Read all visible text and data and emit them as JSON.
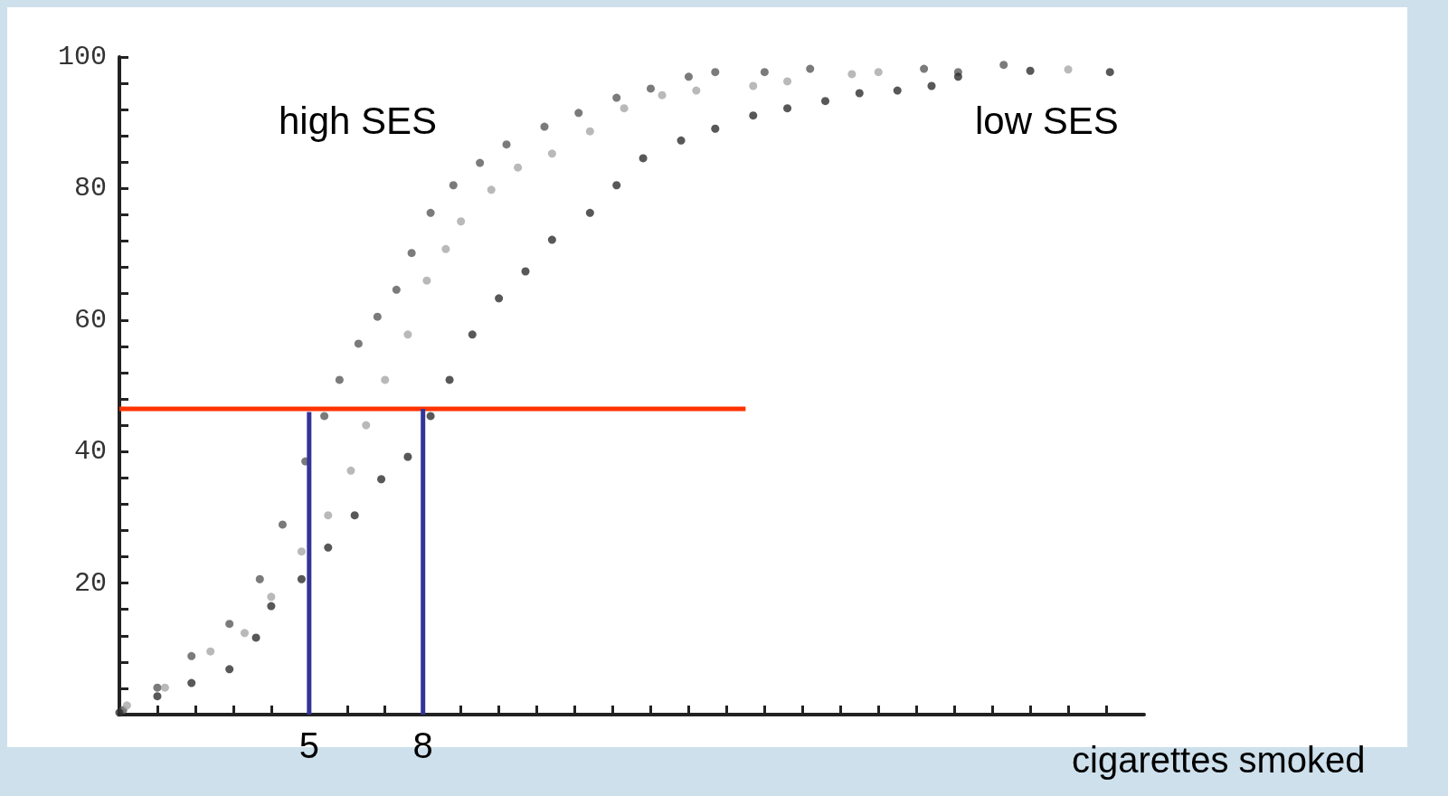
{
  "chart_data": {
    "type": "scatter",
    "xlabel": "cigarettes smoked",
    "annotations": [
      "high SES",
      "low SES"
    ],
    "xlim": [
      0,
      27
    ],
    "ylim": [
      0,
      100
    ],
    "xticks": [
      {
        "value": 0,
        "label": null
      },
      {
        "value": 1,
        "label": null
      },
      {
        "value": 2,
        "label": null
      },
      {
        "value": 3,
        "label": null
      },
      {
        "value": 4,
        "label": null
      },
      {
        "value": 5,
        "label": "5"
      },
      {
        "value": 6,
        "label": null
      },
      {
        "value": 7,
        "label": null
      },
      {
        "value": 8,
        "label": "8"
      },
      {
        "value": 9,
        "label": null
      },
      {
        "value": 10,
        "label": null
      },
      {
        "value": 11,
        "label": null
      },
      {
        "value": 12,
        "label": null
      },
      {
        "value": 13,
        "label": null
      },
      {
        "value": 14,
        "label": null
      },
      {
        "value": 15,
        "label": null
      },
      {
        "value": 16,
        "label": null
      },
      {
        "value": 17,
        "label": null
      },
      {
        "value": 18,
        "label": null
      },
      {
        "value": 19,
        "label": null
      },
      {
        "value": 20,
        "label": null
      },
      {
        "value": 21,
        "label": null
      },
      {
        "value": 22,
        "label": null
      },
      {
        "value": 23,
        "label": null
      },
      {
        "value": 24,
        "label": null
      },
      {
        "value": 25,
        "label": null
      },
      {
        "value": 26,
        "label": null
      }
    ],
    "yticks": [
      {
        "value": 4,
        "label": null
      },
      {
        "value": 8,
        "label": null
      },
      {
        "value": 12,
        "label": null
      },
      {
        "value": 16,
        "label": null
      },
      20,
      {
        "value": 24,
        "label": null
      },
      {
        "value": 28,
        "label": null
      },
      {
        "value": 32,
        "label": null
      },
      {
        "value": 36,
        "label": null
      },
      40,
      {
        "value": 44,
        "label": null
      },
      {
        "value": 48,
        "label": null
      },
      {
        "value": 52,
        "label": null
      },
      {
        "value": 56,
        "label": null
      },
      60,
      {
        "value": 64,
        "label": null
      },
      {
        "value": 68,
        "label": null
      },
      {
        "value": 72,
        "label": null
      },
      {
        "value": 76,
        "label": null
      },
      80,
      {
        "value": 84,
        "label": null
      },
      {
        "value": 88,
        "label": null
      },
      {
        "value": 92,
        "label": null
      },
      {
        "value": 96,
        "label": null
      },
      100
    ],
    "grid": false,
    "marker": "circle",
    "series": [
      {
        "color": "#5a5a5a",
        "x": [
          0.1,
          1.0,
          1.9,
          2.9,
          3.7,
          4.3,
          4.9,
          5.4,
          5.8,
          6.3,
          6.8,
          7.3,
          7.7,
          8.2,
          8.8,
          9.5,
          10.2,
          11.2,
          12.1,
          13.1,
          14.0,
          15.0,
          15.7,
          17.0,
          18.2,
          21.2,
          22.1,
          23.3
        ],
        "values": [
          0.7,
          4.1,
          8.9,
          13.8,
          20.6,
          28.9,
          38.5,
          45.4,
          50.9,
          56.4,
          60.5,
          64.6,
          70.2,
          76.3,
          80.5,
          83.9,
          86.7,
          89.4,
          91.5,
          93.8,
          95.2,
          97,
          97.7,
          97.7,
          98.2,
          98.2,
          97.7,
          98.8
        ]
      },
      {
        "color": "#a8a8a8",
        "x": [
          0.2,
          1.2,
          2.4,
          3.3,
          4.0,
          4.8,
          5.5,
          6.1,
          6.5,
          7.0,
          7.6,
          8.1,
          8.6,
          9.0,
          9.8,
          10.5,
          11.4,
          12.4,
          13.3,
          14.3,
          15.2,
          16.7,
          17.6,
          19.3,
          20.0,
          25.0
        ],
        "values": [
          1.4,
          4.1,
          9.6,
          12.4,
          17.9,
          24.8,
          30.3,
          37.1,
          44.0,
          50.9,
          57.8,
          66.0,
          70.8,
          75.0,
          79.8,
          83.2,
          85.3,
          88.7,
          92.2,
          94.2,
          94.9,
          95.6,
          96.3,
          97.4,
          97.7,
          98.1
        ]
      },
      {
        "color": "#2e2e2e",
        "x": [
          0,
          1,
          1.9,
          2.9,
          3.6,
          4.0,
          4.8,
          5.5,
          6.2,
          6.9,
          7.6,
          8.2,
          8.7,
          9.3,
          10.0,
          10.7,
          11.4,
          12.4,
          13.1,
          13.8,
          14.8,
          15.7,
          16.7,
          17.6,
          18.6,
          19.5,
          20.5,
          21.4,
          22.1,
          24.0,
          26.1
        ],
        "values": [
          0.3,
          2.8,
          4.8,
          6.9,
          11.7,
          16.5,
          20.6,
          25.4,
          30.3,
          35.8,
          39.2,
          45.4,
          50.9,
          57.8,
          63.3,
          67.4,
          72.2,
          76.3,
          80.5,
          84.6,
          87.3,
          89.1,
          91.1,
          92.2,
          93.3,
          94.5,
          94.9,
          95.6,
          97.0,
          97.9,
          97.7
        ]
      },
      {
        "type": "line",
        "color": "#ff3300",
        "marker": "none",
        "x": [
          0,
          16.5
        ],
        "values": [
          46.5,
          46.5
        ]
      },
      {
        "type": "line",
        "color": "#333399",
        "marker": "none",
        "x": [
          5,
          5
        ],
        "values": [
          0,
          46
        ]
      },
      {
        "type": "line",
        "color": "#333399",
        "marker": "none",
        "x": [
          8,
          8
        ],
        "values": [
          0,
          46.5
        ]
      }
    ]
  }
}
